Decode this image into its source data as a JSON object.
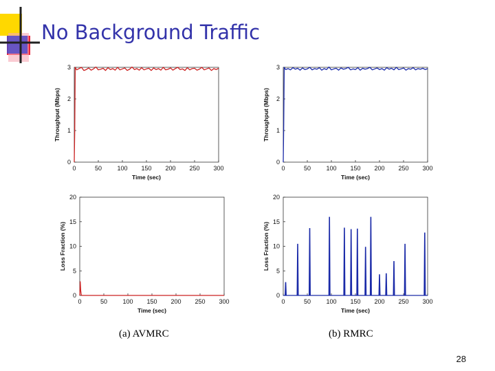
{
  "slide": {
    "title": "No Background Traffic",
    "caption_a": "(a) AVMRC",
    "caption_b": "(b) RMRC",
    "page_number": "28"
  },
  "chart_data": [
    {
      "type": "line",
      "panel": "throughput-avmrc",
      "xlabel": "Time (sec)",
      "ylabel": "Throughput (Mbps)",
      "xlim": [
        0,
        300
      ],
      "ylim": [
        0,
        3
      ],
      "xticks": [
        0,
        50,
        100,
        150,
        200,
        250,
        300
      ],
      "yticks": [
        0,
        1,
        2,
        3
      ],
      "color": "#cc2222",
      "series": [
        {
          "x": [
            0,
            1,
            2,
            5,
            10,
            15,
            20,
            25,
            30,
            35,
            40,
            45,
            50,
            55,
            60,
            65,
            70,
            75,
            80,
            85,
            90,
            95,
            100,
            105,
            110,
            115,
            120,
            125,
            130,
            135,
            140,
            145,
            150,
            155,
            160,
            165,
            170,
            175,
            180,
            185,
            190,
            195,
            200,
            205,
            210,
            215,
            220,
            225,
            230,
            235,
            240,
            245,
            250,
            255,
            260,
            265,
            270,
            275,
            280,
            285,
            290,
            295,
            300
          ],
          "values": [
            0,
            1.0,
            3.0,
            2.92,
            2.96,
            3.0,
            2.9,
            2.93,
            2.98,
            2.91,
            2.95,
            3.01,
            2.92,
            2.94,
            2.97,
            2.9,
            2.99,
            2.93,
            2.96,
            2.91,
            3.0,
            2.92,
            2.95,
            2.98,
            2.9,
            2.94,
            3.01,
            2.93,
            2.96,
            2.91,
            2.99,
            2.92,
            2.95,
            2.97,
            2.9,
            2.98,
            2.93,
            2.96,
            2.91,
            3.0,
            2.92,
            2.94,
            2.98,
            2.91,
            2.96,
            3.0,
            2.93,
            2.95,
            2.9,
            2.99,
            2.92,
            2.96,
            2.97,
            2.91,
            2.94,
            3.0,
            2.92,
            2.95,
            2.98,
            2.9,
            2.96,
            2.93,
            2.97
          ]
        }
      ]
    },
    {
      "type": "line",
      "panel": "throughput-rmrc",
      "xlabel": "Time (sec)",
      "ylabel": "Throughput (Mbps)",
      "xlim": [
        0,
        300
      ],
      "ylim": [
        0,
        3
      ],
      "xticks": [
        0,
        50,
        100,
        150,
        200,
        250,
        300
      ],
      "yticks": [
        0,
        1,
        2,
        3
      ],
      "color": "#1a2aa8",
      "series": [
        {
          "x": [
            0,
            1,
            2,
            5,
            10,
            15,
            20,
            25,
            30,
            35,
            40,
            45,
            50,
            55,
            60,
            65,
            70,
            75,
            80,
            85,
            90,
            95,
            100,
            105,
            110,
            115,
            120,
            125,
            130,
            135,
            140,
            145,
            150,
            155,
            160,
            165,
            170,
            175,
            180,
            185,
            190,
            195,
            200,
            205,
            210,
            215,
            220,
            225,
            230,
            235,
            240,
            245,
            250,
            255,
            260,
            265,
            270,
            275,
            280,
            285,
            290,
            295,
            300
          ],
          "values": [
            0,
            1.2,
            3.0,
            2.93,
            2.96,
            2.92,
            2.99,
            2.94,
            2.97,
            2.91,
            2.98,
            2.93,
            2.95,
            3.0,
            2.92,
            2.96,
            2.94,
            2.99,
            2.91,
            2.96,
            2.93,
            3.01,
            2.92,
            2.95,
            2.97,
            2.91,
            2.98,
            2.94,
            2.96,
            3.0,
            2.92,
            2.95,
            2.93,
            2.99,
            2.91,
            2.97,
            2.94,
            2.96,
            3.0,
            2.92,
            2.95,
            2.98,
            2.93,
            2.96,
            2.91,
            2.99,
            2.94,
            2.97,
            2.92,
            3.0,
            2.93,
            2.95,
            2.98,
            2.91,
            2.96,
            2.94,
            2.99,
            2.92,
            2.96,
            2.94,
            2.97,
            2.93,
            2.96
          ]
        }
      ]
    },
    {
      "type": "line",
      "panel": "loss-avmrc",
      "xlabel": "Time (sec)",
      "ylabel": "Loss Fraction (%)",
      "xlim": [
        0,
        300
      ],
      "ylim": [
        0,
        20
      ],
      "xticks": [
        0,
        50,
        100,
        150,
        200,
        250,
        300
      ],
      "yticks": [
        0,
        5,
        10,
        15,
        20
      ],
      "color": "#cc2222",
      "series": [
        {
          "x": [
            0,
            1,
            2,
            3,
            4,
            300
          ],
          "values": [
            0,
            2.8,
            1.0,
            0.2,
            0,
            0
          ]
        }
      ]
    },
    {
      "type": "line",
      "panel": "loss-rmrc",
      "xlabel": "Time (sec)",
      "ylabel": "Loss Fraction (%)",
      "xlim": [
        0,
        300
      ],
      "ylim": [
        0,
        20
      ],
      "xticks": [
        0,
        50,
        100,
        150,
        200,
        250,
        300
      ],
      "yticks": [
        0,
        5,
        10,
        15,
        20
      ],
      "color": "#1a2aa8",
      "series": [
        {
          "spikes": [
            {
              "x": 5,
              "value": 2.7
            },
            {
              "x": 30,
              "value": 10.5
            },
            {
              "x": 55,
              "value": 13.7
            },
            {
              "x": 96,
              "value": 16.0
            },
            {
              "x": 127,
              "value": 13.8
            },
            {
              "x": 141,
              "value": 13.5
            },
            {
              "x": 154,
              "value": 13.6
            },
            {
              "x": 171,
              "value": 9.9
            },
            {
              "x": 182,
              "value": 16.0
            },
            {
              "x": 200,
              "value": 4.3
            },
            {
              "x": 214,
              "value": 4.5
            },
            {
              "x": 230,
              "value": 7.0
            },
            {
              "x": 253,
              "value": 10.5
            },
            {
              "x": 294,
              "value": 12.8
            }
          ]
        }
      ]
    }
  ]
}
